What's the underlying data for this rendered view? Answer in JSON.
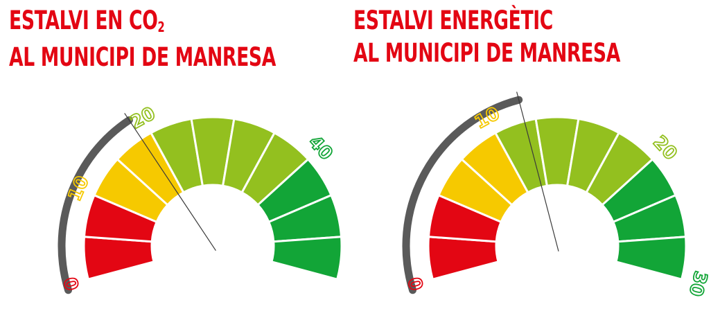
{
  "colors": {
    "title": "#e30613",
    "red": "#e30613",
    "yellow": "#f6c900",
    "light_green": "#93c01f",
    "green": "#12a537",
    "arc": "#5a5a5a",
    "needle": "#3a3a3a"
  },
  "gauges": [
    {
      "title_line1_prefix": "ESTALVI EN CO",
      "title_line1_sub": "2",
      "title_line2": "AL MUNICIPI DE MANRESA",
      "segments": [
        "red",
        "red",
        "yellow",
        "yellow",
        "light_green",
        "light_green",
        "light_green",
        "light_green",
        "green",
        "green",
        "green"
      ],
      "ticks": [
        {
          "label": "0",
          "at_segment_boundary": 0,
          "color": "red"
        },
        {
          "label": "10",
          "at_segment_boundary": 2,
          "color": "yellow"
        },
        {
          "label": "20",
          "at_segment_boundary": 4,
          "color": "light_green"
        },
        {
          "label": "40",
          "at_segment_boundary": 8,
          "color": "green"
        }
      ],
      "value_fraction": 0.34
    },
    {
      "title_line1": "ESTALVI ENERGÈTIC",
      "title_line2": "AL MUNICIPI DE MANRESA",
      "segments": [
        "red",
        "red",
        "yellow",
        "yellow",
        "light_green",
        "light_green",
        "light_green",
        "light_green",
        "green",
        "green",
        "green"
      ],
      "ticks": [
        {
          "label": "0",
          "at_segment_boundary": 0,
          "color": "red"
        },
        {
          "label": "10",
          "at_segment_boundary": 4,
          "color": "yellow"
        },
        {
          "label": "20",
          "at_segment_boundary": 8,
          "color": "light_green"
        },
        {
          "label": "30",
          "at_segment_boundary": 11,
          "color": "green"
        }
      ],
      "value_fraction": 0.43
    }
  ]
}
